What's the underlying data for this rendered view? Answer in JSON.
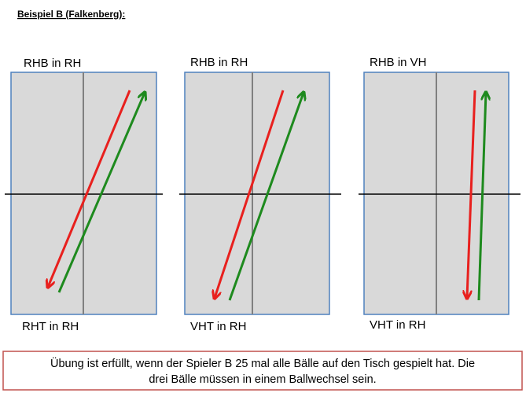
{
  "header": {
    "title": "Beispiel B (Falkenberg):"
  },
  "panels": [
    {
      "top_label": "RHB in RH",
      "bottom_label": "RHT in RH"
    },
    {
      "top_label": "RHB in RH",
      "bottom_label": "VHT in RH"
    },
    {
      "top_label": "RHB in VH",
      "bottom_label": "VHT in RH"
    }
  ],
  "footer": {
    "lines": [
      "Übung ist erfüllt, wenn der Spieler B 25 mal alle Bälle auf den Tisch gespielt hat. Die",
      "drei Bälle müssen in einem Ballwechsel sein."
    ]
  }
}
